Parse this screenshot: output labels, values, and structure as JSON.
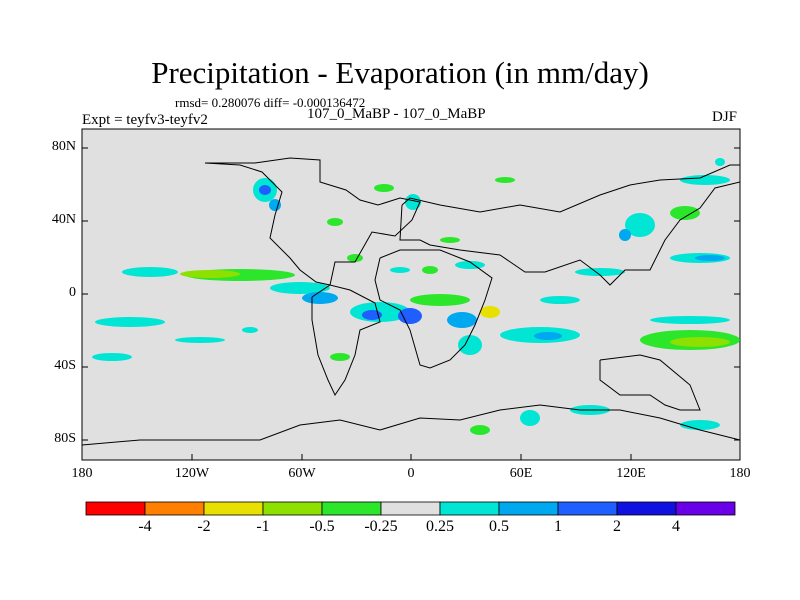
{
  "title": "Precipitation - Evaporation (in mm/day)",
  "stats": "rmsd= 0.280076 diff= -0.000136472",
  "experiment": "Expt = teyfv3-teyfv2",
  "pair_label": "107_0_MaBP - 107_0_MaBP",
  "season": "DJF",
  "lat_ticks": [
    "80N",
    "40N",
    "0",
    "40S",
    "80S"
  ],
  "lon_ticks": [
    "180",
    "120W",
    "60W",
    "0",
    "60E",
    "120E",
    "180"
  ],
  "colorbar": {
    "colors": [
      "#ff0000",
      "#ff7f00",
      "#e8e000",
      "#8de000",
      "#2ce62c",
      "#e0e0e0",
      "#00e5d4",
      "#00a8f0",
      "#1f5fff",
      "#1010e0",
      "#6a00e8"
    ],
    "labels": [
      "-4",
      "-2",
      "-1",
      "-0.5",
      "-0.25",
      "0.25",
      "0.5",
      "1",
      "2",
      "4"
    ]
  }
}
